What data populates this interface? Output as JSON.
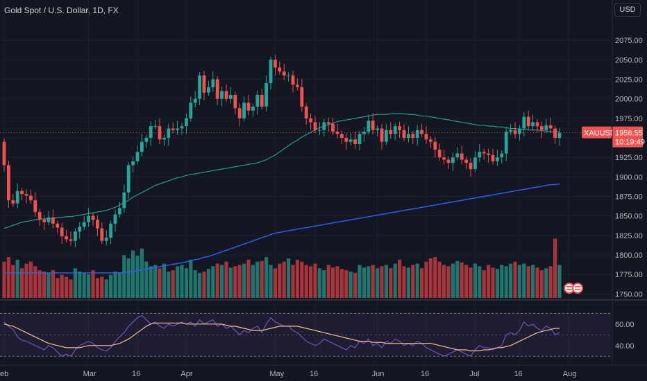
{
  "header": {
    "title": "Gold Spot / U.S. Dollar, 1D, FX",
    "currency_button": "USD"
  },
  "price_tag": {
    "symbol": "XAUUSD",
    "price": "1956.55",
    "countdown": "10:19:49"
  },
  "colors": {
    "background": "#131722",
    "up": "#26a69a",
    "down": "#ef5350",
    "vol_up": "#1e766e",
    "vol_down": "#a8353b",
    "ma_short": "#26a69a",
    "ma_long": "#2962ff",
    "rsi_line": "#7e57c2",
    "rsi_ma": "#f7c38d",
    "grid": "#1e222d"
  },
  "chart_data": [
    {
      "type": "candlestick",
      "symbol": "XAUUSD",
      "y_ticks": [
        1750,
        1775,
        1800,
        1825,
        1850,
        1875,
        1900,
        1925,
        1950,
        1975,
        2000,
        2025,
        2050,
        2075
      ],
      "y_tick_labels": [
        "1750.00",
        "1775.00",
        "1800.00",
        "1825.00",
        "1850.00",
        "1875.00",
        "1900.00",
        "1925.00",
        "1950.00",
        "1975.00",
        "2000.00",
        "2025.00",
        "2050.00",
        "2075.00"
      ],
      "ylim": [
        1745,
        2100
      ],
      "x_tick_labels": [
        {
          "label": "eb",
          "index": 0
        },
        {
          "label": "Mar",
          "index": 19
        },
        {
          "label": "16",
          "index": 30
        },
        {
          "label": "Apr",
          "index": 41
        },
        {
          "label": "May",
          "index": 61
        },
        {
          "label": "16",
          "index": 70
        },
        {
          "label": "Jun",
          "index": 84
        },
        {
          "label": "16",
          "index": 95
        },
        {
          "label": "Jul",
          "index": 106
        },
        {
          "label": "16",
          "index": 116
        },
        {
          "label": "Aug",
          "index": 127
        }
      ],
      "last_price": 1956.55,
      "close": [
        1915,
        1870,
        1866,
        1882,
        1878,
        1876,
        1870,
        1855,
        1845,
        1842,
        1848,
        1840,
        1835,
        1824,
        1820,
        1818,
        1830,
        1836,
        1842,
        1850,
        1845,
        1834,
        1818,
        1822,
        1840,
        1852,
        1860,
        1880,
        1915,
        1920,
        1932,
        1945,
        1950,
        1965,
        1965,
        1948,
        1950,
        1962,
        1960,
        1962,
        1965,
        1975,
        1995,
        2000,
        2030,
        2008,
        2015,
        2025,
        2000,
        2010,
        2000,
        2005,
        1988,
        1975,
        1995,
        1985,
        1990,
        2005,
        1990,
        2020,
        2050,
        2040,
        2035,
        2030,
        2030,
        2018,
        2015,
        1990,
        1975,
        1970,
        1960,
        1960,
        1970,
        1968,
        1958,
        1955,
        1950,
        1945,
        1948,
        1942,
        1955,
        1958,
        1972,
        1960,
        1962,
        1945,
        1960,
        1955,
        1965,
        1960,
        1950,
        1955,
        1950,
        1960,
        1955,
        1948,
        1945,
        1935,
        1925,
        1922,
        1918,
        1925,
        1930,
        1922,
        1918,
        1910,
        1925,
        1932,
        1930,
        1928,
        1920,
        1925,
        1930,
        1958,
        1960,
        1955,
        1962,
        1977,
        1965,
        1970,
        1965,
        1960,
        1966,
        1962,
        1950,
        1956.55
      ],
      "open": [
        1945,
        1915,
        1870,
        1866,
        1882,
        1878,
        1876,
        1870,
        1855,
        1845,
        1842,
        1848,
        1840,
        1835,
        1824,
        1820,
        1818,
        1830,
        1836,
        1842,
        1850,
        1845,
        1834,
        1818,
        1822,
        1840,
        1852,
        1860,
        1880,
        1915,
        1920,
        1932,
        1945,
        1950,
        1965,
        1965,
        1948,
        1950,
        1962,
        1960,
        1962,
        1965,
        1975,
        1995,
        2000,
        2030,
        2008,
        2015,
        2025,
        2000,
        2010,
        2000,
        2005,
        1988,
        1975,
        1995,
        1985,
        1990,
        2005,
        1990,
        2020,
        2050,
        2040,
        2035,
        2030,
        2030,
        2018,
        2015,
        1990,
        1975,
        1970,
        1960,
        1960,
        1970,
        1968,
        1958,
        1955,
        1950,
        1945,
        1948,
        1942,
        1955,
        1958,
        1972,
        1960,
        1962,
        1945,
        1960,
        1955,
        1965,
        1960,
        1950,
        1955,
        1950,
        1960,
        1955,
        1948,
        1945,
        1935,
        1925,
        1922,
        1918,
        1925,
        1930,
        1922,
        1918,
        1910,
        1925,
        1932,
        1930,
        1928,
        1920,
        1925,
        1930,
        1958,
        1960,
        1955,
        1962,
        1977,
        1965,
        1970,
        1965,
        1960,
        1966,
        1962,
        1950
      ],
      "ma_short": [
        1834,
        1836,
        1838,
        1840,
        1842,
        1843,
        1844,
        1845,
        1846,
        1846,
        1847,
        1847,
        1848,
        1848,
        1849,
        1849,
        1850,
        1851,
        1852,
        1853,
        1854,
        1855,
        1856,
        1857,
        1859,
        1861,
        1864,
        1867,
        1870,
        1874,
        1877,
        1880,
        1883,
        1886,
        1889,
        1891,
        1893,
        1895,
        1897,
        1899,
        1900,
        1902,
        1903,
        1904,
        1905,
        1906,
        1907,
        1908,
        1909,
        1910,
        1911,
        1912,
        1913,
        1914,
        1915,
        1916,
        1917,
        1918,
        1920,
        1922,
        1925,
        1928,
        1932,
        1936,
        1940,
        1944,
        1947,
        1951,
        1954,
        1957,
        1960,
        1963,
        1965,
        1967,
        1969,
        1971,
        1972,
        1973,
        1974,
        1975,
        1976,
        1977,
        1978,
        1979,
        1980,
        1980,
        1980,
        1981,
        1981,
        1981,
        1981,
        1980,
        1980,
        1979,
        1978,
        1978,
        1977,
        1976,
        1975,
        1974,
        1973,
        1972,
        1971,
        1970,
        1969,
        1968,
        1967,
        1966,
        1966,
        1965,
        1965,
        1964,
        1964,
        1963,
        1962,
        1962,
        1961,
        1961,
        1960,
        1960,
        1960,
        1959,
        1959,
        1958,
        1958,
        1958
      ],
      "ma_long": [
        1777,
        1777,
        1777,
        1777,
        1777,
        1777,
        1777,
        1777,
        1777,
        1777,
        1777,
        1777,
        1777,
        1777,
        1777,
        1777,
        1777,
        1777,
        1777,
        1777,
        1777,
        1777,
        1777,
        1777,
        1777,
        1777,
        1777,
        1778,
        1778,
        1779,
        1780,
        1781,
        1782,
        1783,
        1784,
        1785,
        1786,
        1787,
        1788,
        1789,
        1790,
        1791,
        1793,
        1794,
        1795,
        1797,
        1798,
        1800,
        1802,
        1804,
        1806,
        1808,
        1810,
        1812,
        1814,
        1816,
        1818,
        1820,
        1822,
        1824,
        1826,
        1828,
        1829,
        1830,
        1831,
        1832,
        1833,
        1834,
        1835,
        1836,
        1837,
        1838,
        1839,
        1840,
        1841,
        1842,
        1843,
        1844,
        1845,
        1846,
        1847,
        1848,
        1849,
        1850,
        1851,
        1852,
        1853,
        1854,
        1855,
        1856,
        1857,
        1858,
        1859,
        1860,
        1861,
        1862,
        1863,
        1864,
        1865,
        1866,
        1867,
        1868,
        1869,
        1870,
        1871,
        1872,
        1873,
        1874,
        1875,
        1876,
        1877,
        1878,
        1879,
        1880,
        1881,
        1882,
        1883,
        1884,
        1885,
        1886,
        1887,
        1888,
        1889,
        1890,
        1890,
        1891
      ],
      "volume_rel": [
        0.55,
        0.62,
        0.5,
        0.58,
        0.45,
        0.52,
        0.55,
        0.48,
        0.42,
        0.4,
        0.38,
        0.42,
        0.3,
        0.35,
        0.32,
        0.28,
        0.45,
        0.4,
        0.38,
        0.36,
        0.42,
        0.3,
        0.32,
        0.28,
        0.35,
        0.4,
        0.38,
        0.65,
        0.6,
        0.72,
        0.64,
        0.75,
        0.55,
        0.48,
        0.5,
        0.45,
        0.52,
        0.4,
        0.42,
        0.48,
        0.5,
        0.45,
        0.58,
        0.42,
        0.38,
        0.4,
        0.44,
        0.48,
        0.52,
        0.5,
        0.55,
        0.46,
        0.48,
        0.5,
        0.52,
        0.58,
        0.5,
        0.55,
        0.56,
        0.62,
        0.5,
        0.45,
        0.52,
        0.55,
        0.6,
        0.5,
        0.58,
        0.55,
        0.5,
        0.48,
        0.52,
        0.45,
        0.42,
        0.5,
        0.46,
        0.48,
        0.44,
        0.42,
        0.4,
        0.38,
        0.5,
        0.46,
        0.48,
        0.5,
        0.45,
        0.48,
        0.5,
        0.45,
        0.52,
        0.58,
        0.48,
        0.46,
        0.5,
        0.52,
        0.45,
        0.55,
        0.6,
        0.62,
        0.55,
        0.5,
        0.48,
        0.52,
        0.56,
        0.54,
        0.5,
        0.46,
        0.52,
        0.48,
        0.42,
        0.5,
        0.46,
        0.44,
        0.5,
        0.48,
        0.52,
        0.55,
        0.5,
        0.52,
        0.48,
        0.5,
        0.46,
        0.42,
        0.45,
        0.48,
        0.9,
        0.5
      ],
      "rsi": [
        62,
        58,
        55,
        48,
        45,
        44,
        42,
        40,
        38,
        36,
        40,
        38,
        34,
        30,
        32,
        30,
        36,
        40,
        42,
        44,
        42,
        38,
        36,
        35,
        38,
        44,
        48,
        52,
        58,
        62,
        66,
        68,
        64,
        60,
        62,
        58,
        56,
        60,
        58,
        60,
        62,
        60,
        62,
        58,
        64,
        60,
        62,
        64,
        58,
        60,
        56,
        58,
        54,
        50,
        54,
        52,
        56,
        58,
        52,
        60,
        66,
        62,
        60,
        58,
        58,
        54,
        52,
        48,
        44,
        42,
        40,
        42,
        46,
        44,
        42,
        40,
        38,
        36,
        40,
        38,
        44,
        42,
        46,
        40,
        42,
        38,
        44,
        42,
        46,
        44,
        40,
        42,
        40,
        44,
        42,
        38,
        36,
        34,
        32,
        30,
        32,
        34,
        36,
        34,
        32,
        30,
        36,
        40,
        38,
        38,
        36,
        38,
        40,
        50,
        52,
        50,
        54,
        62,
        58,
        60,
        56,
        54,
        58,
        56,
        50,
        52
      ],
      "rsi_ma": [
        60,
        59,
        58,
        56,
        54,
        52,
        50,
        48,
        46,
        44,
        42,
        41,
        40,
        39,
        38,
        38,
        38,
        38,
        39,
        40,
        40,
        40,
        40,
        40,
        40,
        41,
        42,
        44,
        46,
        49,
        52,
        55,
        58,
        60,
        61,
        61,
        61,
        61,
        61,
        61,
        61,
        60,
        60,
        60,
        60,
        60,
        60,
        60,
        60,
        60,
        59,
        58,
        58,
        57,
        56,
        55,
        54,
        54,
        54,
        55,
        56,
        57,
        58,
        58,
        58,
        58,
        58,
        57,
        56,
        55,
        54,
        53,
        52,
        51,
        50,
        49,
        48,
        47,
        46,
        45,
        44,
        44,
        44,
        43,
        43,
        43,
        42,
        42,
        42,
        42,
        42,
        42,
        42,
        42,
        42,
        42,
        42,
        41,
        40,
        39,
        38,
        37,
        36,
        36,
        36,
        35,
        35,
        35,
        36,
        36,
        37,
        38,
        38,
        39,
        40,
        42,
        44,
        46,
        48,
        50,
        52,
        53,
        54,
        55,
        56,
        56
      ],
      "rsi_ticks": [
        40,
        60
      ],
      "rsi_tick_labels": [
        "40.00",
        "60.00"
      ],
      "rsi_band": [
        30,
        70
      ],
      "rsi_ylim": [
        25,
        78
      ]
    }
  ]
}
